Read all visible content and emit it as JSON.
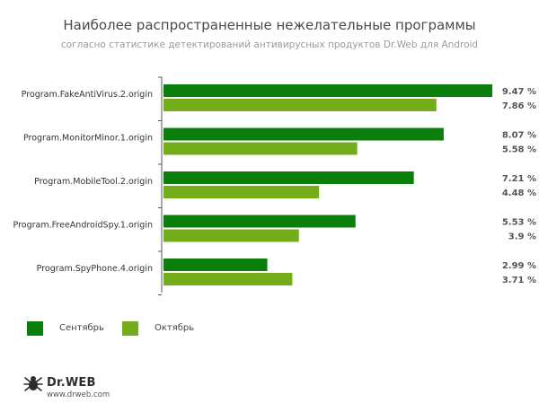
{
  "title": "Наиболее распространенные нежелательные программы",
  "subtitle": "согласно статистике детектирований антивирусных продуктов Dr.Web для Android",
  "colors": {
    "september": "#0b7f0b",
    "october": "#74ad1c",
    "axis": "#555555"
  },
  "chart_data": {
    "type": "bar",
    "orientation": "horizontal",
    "categories": [
      "Program.FakeAntiVirus.2.origin",
      "Program.MonitorMinor.1.origin",
      "Program.MobileTool.2.origin",
      "Program.FreeAndroidSpy.1.origin",
      "Program.SpyPhone.4.origin"
    ],
    "series": [
      {
        "name": "Сентябрь",
        "values": [
          9.47,
          8.07,
          7.21,
          5.53,
          2.99
        ],
        "labels": [
          "9.47 %",
          "8.07 %",
          "7.21 %",
          "5.53 %",
          "2.99 %"
        ]
      },
      {
        "name": "Октябрь",
        "values": [
          7.86,
          5.58,
          4.48,
          3.9,
          3.71
        ],
        "labels": [
          "7.86 %",
          "5.58 %",
          "4.48 %",
          "3.9 %",
          "3.71 %"
        ]
      }
    ],
    "xlim": [
      0,
      9.47
    ],
    "grid": false,
    "legend": "bottom-left"
  },
  "legend": {
    "items": [
      "Сентябрь",
      "Октябрь"
    ]
  },
  "logo": {
    "name": "Dr.WEB",
    "url": "www.drweb.com",
    "icon": "spider-icon"
  }
}
